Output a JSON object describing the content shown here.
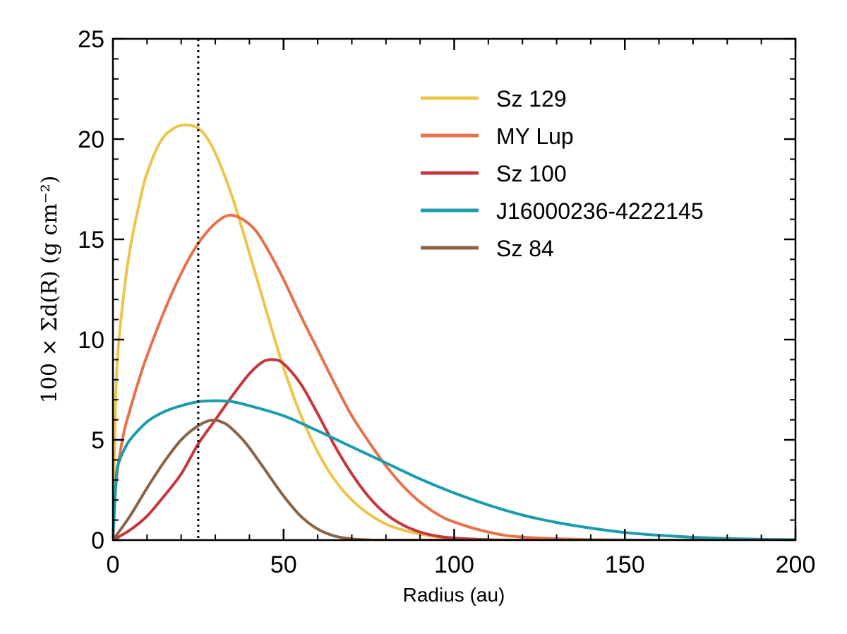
{
  "chart_data": {
    "type": "line",
    "title": "",
    "xlabel": "Radius (au)",
    "ylabel": "100 × Σd(R) (g cm⁻²)",
    "xlim": [
      0,
      200
    ],
    "ylim": [
      0,
      25
    ],
    "xticks": [
      "0",
      "50",
      "100",
      "150",
      "200"
    ],
    "yticks": [
      "0",
      "5",
      "10",
      "15",
      "20",
      "25"
    ],
    "grid": false,
    "legend_position": "top-right",
    "vline": {
      "x": 25,
      "style": "dotted"
    },
    "series": [
      {
        "name": "Sz 129",
        "color": "#eec44a",
        "x": [
          0,
          1,
          3,
          5,
          8,
          10,
          14,
          18,
          22,
          26,
          30,
          35,
          40,
          45,
          50,
          55,
          60,
          65,
          70,
          75,
          80,
          85,
          90,
          95,
          100,
          110,
          120,
          140,
          160,
          200
        ],
        "y": [
          0,
          8.0,
          12.0,
          14.5,
          17.0,
          18.3,
          19.9,
          20.55,
          20.7,
          20.4,
          19.3,
          17.1,
          14.3,
          11.4,
          8.6,
          6.25,
          4.4,
          3.0,
          2.0,
          1.3,
          0.8,
          0.5,
          0.3,
          0.16,
          0.08,
          0.02,
          0.0,
          0.0,
          0.0,
          0.0
        ]
      },
      {
        "name": "MY Lup",
        "color": "#e8714a",
        "x": [
          0,
          1,
          3,
          5,
          8,
          10,
          15,
          20,
          25,
          30,
          34,
          38,
          42,
          46,
          50,
          55,
          60,
          65,
          70,
          75,
          80,
          85,
          90,
          95,
          100,
          110,
          120,
          140,
          160,
          200
        ],
        "y": [
          0,
          3.0,
          5.2,
          6.5,
          8.2,
          9.2,
          11.4,
          13.3,
          14.8,
          15.8,
          16.2,
          16.0,
          15.4,
          14.3,
          13.0,
          11.2,
          9.5,
          7.8,
          6.2,
          4.9,
          3.7,
          2.7,
          1.9,
          1.3,
          0.9,
          0.4,
          0.15,
          0.02,
          0.0,
          0.0
        ]
      },
      {
        "name": "Sz 100",
        "color": "#c8353d",
        "x": [
          0,
          5,
          10,
          15,
          20,
          25,
          30,
          35,
          40,
          44,
          47,
          50,
          55,
          60,
          65,
          70,
          75,
          80,
          85,
          90,
          95,
          100,
          110,
          120,
          200
        ],
        "y": [
          0,
          0.5,
          1.2,
          2.2,
          3.3,
          4.8,
          6.0,
          7.2,
          8.3,
          8.9,
          9.0,
          8.8,
          7.8,
          6.3,
          4.7,
          3.3,
          2.15,
          1.3,
          0.75,
          0.4,
          0.2,
          0.1,
          0.02,
          0.0,
          0.0
        ]
      },
      {
        "name": "J16000236-4222145",
        "color": "#1b9cad",
        "x": [
          0,
          1,
          2,
          3,
          5,
          10,
          15,
          20,
          25,
          30,
          35,
          40,
          50,
          60,
          70,
          80,
          90,
          100,
          110,
          120,
          130,
          140,
          150,
          160,
          170,
          180,
          190,
          200
        ],
        "y": [
          0,
          3.2,
          4.0,
          4.4,
          5.0,
          5.9,
          6.4,
          6.7,
          6.9,
          6.95,
          6.9,
          6.7,
          6.2,
          5.45,
          4.65,
          3.85,
          3.05,
          2.35,
          1.75,
          1.25,
          0.88,
          0.6,
          0.38,
          0.24,
          0.14,
          0.08,
          0.04,
          0.02
        ]
      },
      {
        "name": "Sz 84",
        "color": "#8b6245",
        "x": [
          0,
          5,
          10,
          15,
          20,
          25,
          29,
          33,
          37,
          40,
          45,
          50,
          55,
          60,
          65,
          70,
          75,
          80,
          200
        ],
        "y": [
          0,
          1.2,
          2.6,
          3.9,
          5.0,
          5.7,
          5.98,
          5.8,
          5.2,
          4.6,
          3.4,
          2.2,
          1.2,
          0.55,
          0.2,
          0.06,
          0.01,
          0.0,
          0.0
        ]
      }
    ]
  }
}
